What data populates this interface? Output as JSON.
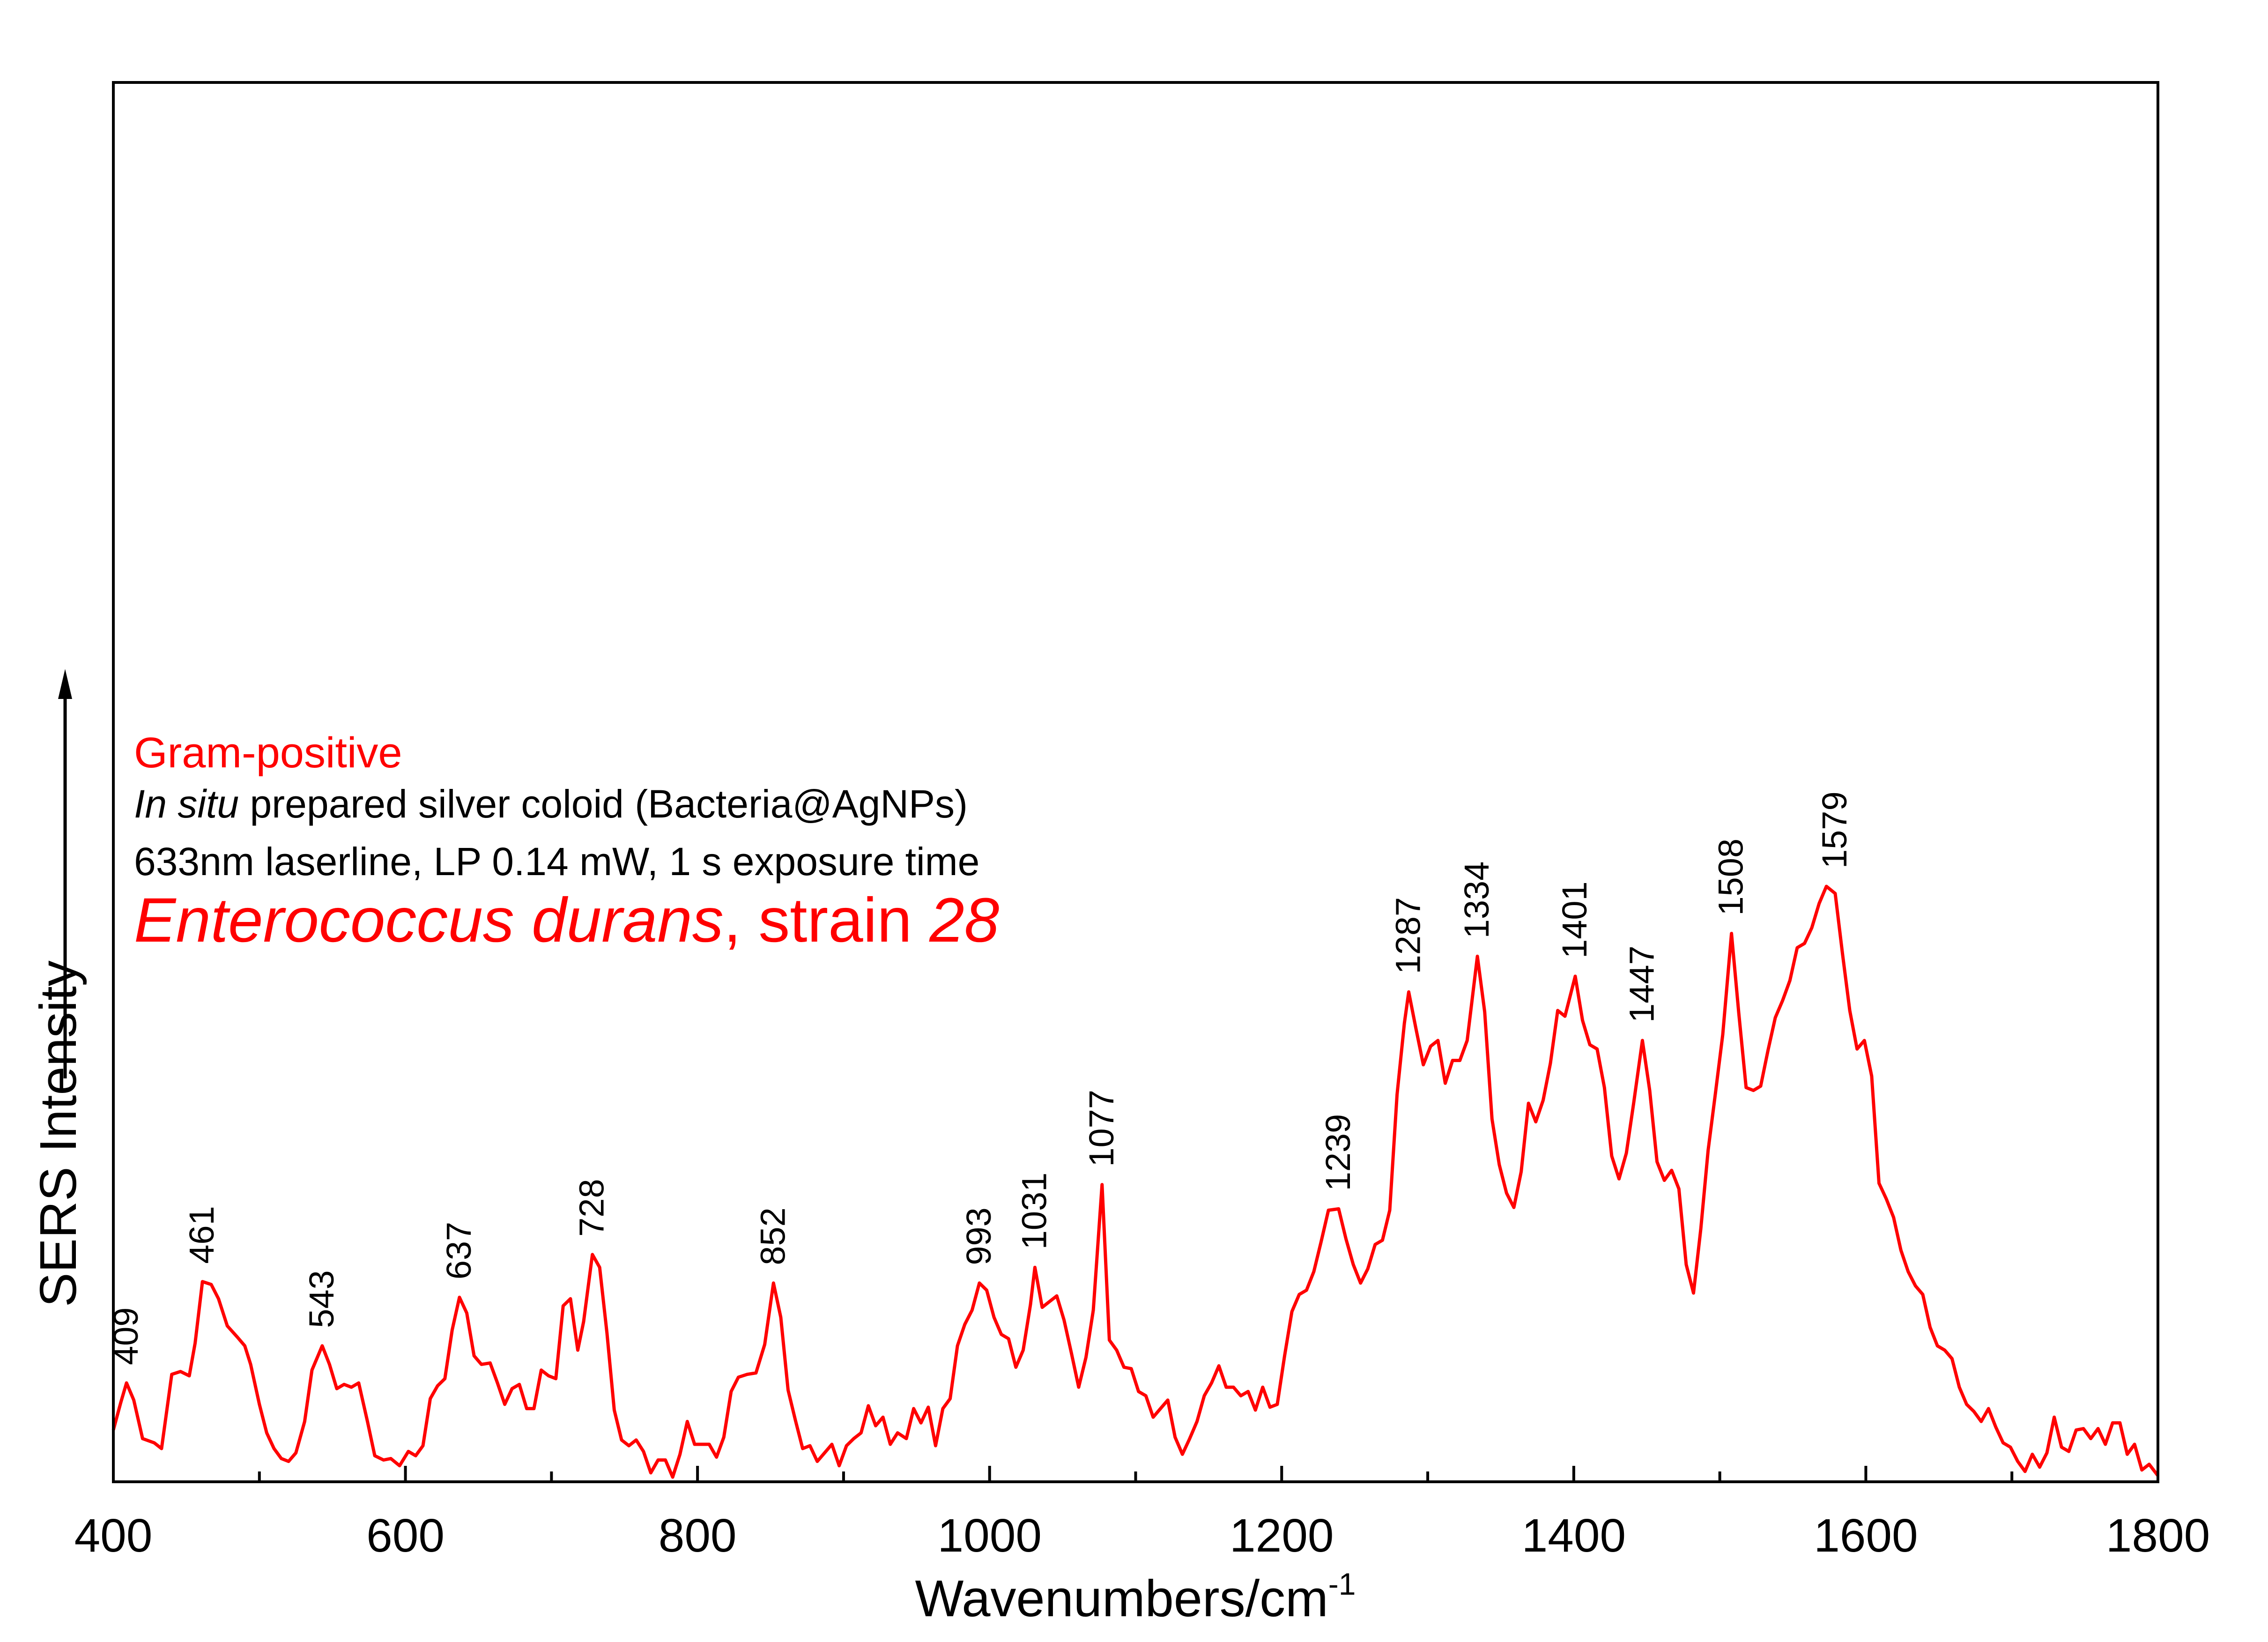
{
  "chart_data": {
    "type": "line",
    "xlabel": "Wavenumbers/cm",
    "xlabel_superscript": "-1",
    "ylabel": "SERS Intensity",
    "xlim": [
      400,
      1800
    ],
    "ylim": [
      0,
      1
    ],
    "x_ticks": [
      400,
      600,
      800,
      1000,
      1200,
      1400,
      1600,
      1800
    ],
    "x_minor_step": 100,
    "y_ticks_shown": false,
    "grid": false,
    "series": [
      {
        "color": "#ff0000",
        "points": [
          [
            400,
            0.034
          ],
          [
            405,
            0.053
          ],
          [
            409,
            0.067
          ],
          [
            414,
            0.055
          ],
          [
            420,
            0.028
          ],
          [
            428,
            0.025
          ],
          [
            433,
            0.021
          ],
          [
            440,
            0.073
          ],
          [
            446,
            0.075
          ],
          [
            452,
            0.072
          ],
          [
            456,
            0.095
          ],
          [
            461,
            0.138
          ],
          [
            467,
            0.136
          ],
          [
            472,
            0.126
          ],
          [
            478,
            0.107
          ],
          [
            485,
            0.099
          ],
          [
            490,
            0.093
          ],
          [
            494,
            0.08
          ],
          [
            500,
            0.052
          ],
          [
            505,
            0.032
          ],
          [
            510,
            0.021
          ],
          [
            515,
            0.014
          ],
          [
            520,
            0.012
          ],
          [
            525,
            0.018
          ],
          [
            531,
            0.04
          ],
          [
            536,
            0.076
          ],
          [
            543,
            0.093
          ],
          [
            548,
            0.08
          ],
          [
            553,
            0.063
          ],
          [
            558,
            0.066
          ],
          [
            563,
            0.064
          ],
          [
            568,
            0.067
          ],
          [
            574,
            0.04
          ],
          [
            579,
            0.016
          ],
          [
            585,
            0.013
          ],
          [
            590,
            0.014
          ],
          [
            596,
            0.009
          ],
          [
            602,
            0.019
          ],
          [
            607,
            0.016
          ],
          [
            612,
            0.023
          ],
          [
            617,
            0.056
          ],
          [
            622,
            0.065
          ],
          [
            627,
            0.07
          ],
          [
            632,
            0.104
          ],
          [
            637,
            0.127
          ],
          [
            642,
            0.116
          ],
          [
            647,
            0.086
          ],
          [
            652,
            0.08
          ],
          [
            658,
            0.081
          ],
          [
            663,
            0.067
          ],
          [
            668,
            0.052
          ],
          [
            673,
            0.063
          ],
          [
            678,
            0.066
          ],
          [
            683,
            0.049
          ],
          [
            688,
            0.049
          ],
          [
            693,
            0.076
          ],
          [
            698,
            0.072
          ],
          [
            703,
            0.07
          ],
          [
            708,
            0.121
          ],
          [
            713,
            0.126
          ],
          [
            718,
            0.09
          ],
          [
            722,
            0.11
          ],
          [
            728,
            0.157
          ],
          [
            733,
            0.148
          ],
          [
            738,
            0.102
          ],
          [
            743,
            0.048
          ],
          [
            748,
            0.027
          ],
          [
            753,
            0.023
          ],
          [
            758,
            0.027
          ],
          [
            763,
            0.019
          ],
          [
            768,
            0.004
          ],
          [
            773,
            0.013
          ],
          [
            778,
            0.013
          ],
          [
            783,
            0.001
          ],
          [
            788,
            0.017
          ],
          [
            793,
            0.04
          ],
          [
            798,
            0.024
          ],
          [
            803,
            0.024
          ],
          [
            808,
            0.024
          ],
          [
            813,
            0.015
          ],
          [
            818,
            0.029
          ],
          [
            823,
            0.061
          ],
          [
            828,
            0.071
          ],
          [
            834,
            0.073
          ],
          [
            840,
            0.074
          ],
          [
            846,
            0.094
          ],
          [
            852,
            0.137
          ],
          [
            857,
            0.113
          ],
          [
            862,
            0.062
          ],
          [
            867,
            0.041
          ],
          [
            872,
            0.021
          ],
          [
            877,
            0.023
          ],
          [
            882,
            0.012
          ],
          [
            887,
            0.018
          ],
          [
            892,
            0.024
          ],
          [
            897,
            0.009
          ],
          [
            902,
            0.023
          ],
          [
            907,
            0.028
          ],
          [
            912,
            0.032
          ],
          [
            917,
            0.051
          ],
          [
            922,
            0.037
          ],
          [
            927,
            0.043
          ],
          [
            932,
            0.024
          ],
          [
            937,
            0.032
          ],
          [
            943,
            0.028
          ],
          [
            948,
            0.049
          ],
          [
            953,
            0.039
          ],
          [
            958,
            0.05
          ],
          [
            963,
            0.023
          ],
          [
            968,
            0.049
          ],
          [
            973,
            0.056
          ],
          [
            978,
            0.093
          ],
          [
            983,
            0.108
          ],
          [
            988,
            0.118
          ],
          [
            993,
            0.137
          ],
          [
            998,
            0.132
          ],
          [
            1003,
            0.113
          ],
          [
            1008,
            0.101
          ],
          [
            1013,
            0.098
          ],
          [
            1018,
            0.078
          ],
          [
            1023,
            0.09
          ],
          [
            1028,
            0.122
          ],
          [
            1031,
            0.148
          ],
          [
            1036,
            0.12
          ],
          [
            1041,
            0.124
          ],
          [
            1046,
            0.128
          ],
          [
            1051,
            0.111
          ],
          [
            1056,
            0.088
          ],
          [
            1061,
            0.064
          ],
          [
            1066,
            0.085
          ],
          [
            1071,
            0.118
          ],
          [
            1077,
            0.206
          ],
          [
            1082,
            0.097
          ],
          [
            1087,
            0.09
          ],
          [
            1092,
            0.078
          ],
          [
            1097,
            0.077
          ],
          [
            1102,
            0.061
          ],
          [
            1107,
            0.058
          ],
          [
            1112,
            0.043
          ],
          [
            1117,
            0.049
          ],
          [
            1122,
            0.055
          ],
          [
            1127,
            0.029
          ],
          [
            1132,
            0.017
          ],
          [
            1137,
            0.028
          ],
          [
            1142,
            0.04
          ],
          [
            1147,
            0.058
          ],
          [
            1152,
            0.067
          ],
          [
            1157,
            0.079
          ],
          [
            1162,
            0.064
          ],
          [
            1167,
            0.064
          ],
          [
            1172,
            0.058
          ],
          [
            1177,
            0.061
          ],
          [
            1182,
            0.048
          ],
          [
            1187,
            0.064
          ],
          [
            1192,
            0.05
          ],
          [
            1197,
            0.052
          ],
          [
            1202,
            0.086
          ],
          [
            1207,
            0.117
          ],
          [
            1212,
            0.129
          ],
          [
            1217,
            0.132
          ],
          [
            1222,
            0.145
          ],
          [
            1227,
            0.166
          ],
          [
            1232,
            0.188
          ],
          [
            1239,
            0.189
          ],
          [
            1244,
            0.168
          ],
          [
            1249,
            0.15
          ],
          [
            1254,
            0.137
          ],
          [
            1259,
            0.147
          ],
          [
            1264,
            0.164
          ],
          [
            1269,
            0.167
          ],
          [
            1274,
            0.188
          ],
          [
            1279,
            0.269
          ],
          [
            1284,
            0.319
          ],
          [
            1287,
            0.341
          ],
          [
            1292,
            0.315
          ],
          [
            1297,
            0.29
          ],
          [
            1302,
            0.303
          ],
          [
            1307,
            0.307
          ],
          [
            1312,
            0.277
          ],
          [
            1317,
            0.293
          ],
          [
            1322,
            0.293
          ],
          [
            1327,
            0.307
          ],
          [
            1334,
            0.366
          ],
          [
            1339,
            0.327
          ],
          [
            1344,
            0.252
          ],
          [
            1349,
            0.22
          ],
          [
            1354,
            0.2
          ],
          [
            1359,
            0.19
          ],
          [
            1364,
            0.215
          ],
          [
            1369,
            0.263
          ],
          [
            1374,
            0.25
          ],
          [
            1379,
            0.265
          ],
          [
            1384,
            0.291
          ],
          [
            1389,
            0.328
          ],
          [
            1394,
            0.324
          ],
          [
            1401,
            0.352
          ],
          [
            1406,
            0.321
          ],
          [
            1411,
            0.304
          ],
          [
            1416,
            0.301
          ],
          [
            1421,
            0.274
          ],
          [
            1426,
            0.226
          ],
          [
            1431,
            0.21
          ],
          [
            1436,
            0.228
          ],
          [
            1441,
            0.263
          ],
          [
            1447,
            0.307
          ],
          [
            1452,
            0.272
          ],
          [
            1457,
            0.222
          ],
          [
            1462,
            0.209
          ],
          [
            1467,
            0.216
          ],
          [
            1472,
            0.203
          ],
          [
            1477,
            0.15
          ],
          [
            1482,
            0.13
          ],
          [
            1487,
            0.175
          ],
          [
            1492,
            0.23
          ],
          [
            1497,
            0.27
          ],
          [
            1502,
            0.311
          ],
          [
            1508,
            0.382
          ],
          [
            1513,
            0.326
          ],
          [
            1518,
            0.274
          ],
          [
            1523,
            0.272
          ],
          [
            1528,
            0.275
          ],
          [
            1533,
            0.3
          ],
          [
            1538,
            0.323
          ],
          [
            1543,
            0.335
          ],
          [
            1548,
            0.349
          ],
          [
            1553,
            0.372
          ],
          [
            1558,
            0.375
          ],
          [
            1563,
            0.386
          ],
          [
            1568,
            0.403
          ],
          [
            1573,
            0.415
          ],
          [
            1579,
            0.41
          ],
          [
            1584,
            0.368
          ],
          [
            1589,
            0.328
          ],
          [
            1594,
            0.301
          ],
          [
            1599,
            0.307
          ],
          [
            1604,
            0.282
          ],
          [
            1609,
            0.207
          ],
          [
            1614,
            0.196
          ],
          [
            1619,
            0.183
          ],
          [
            1624,
            0.16
          ],
          [
            1629,
            0.145
          ],
          [
            1634,
            0.135
          ],
          [
            1639,
            0.129
          ],
          [
            1644,
            0.106
          ],
          [
            1649,
            0.093
          ],
          [
            1654,
            0.09
          ],
          [
            1659,
            0.084
          ],
          [
            1664,
            0.064
          ],
          [
            1669,
            0.052
          ],
          [
            1674,
            0.047
          ],
          [
            1679,
            0.04
          ],
          [
            1684,
            0.049
          ],
          [
            1689,
            0.036
          ],
          [
            1694,
            0.025
          ],
          [
            1699,
            0.022
          ],
          [
            1704,
            0.012
          ],
          [
            1709,
            0.005
          ],
          [
            1714,
            0.017
          ],
          [
            1719,
            0.008
          ],
          [
            1724,
            0.018
          ],
          [
            1729,
            0.043
          ],
          [
            1734,
            0.022
          ],
          [
            1739,
            0.019
          ],
          [
            1744,
            0.034
          ],
          [
            1749,
            0.035
          ],
          [
            1754,
            0.028
          ],
          [
            1759,
            0.035
          ],
          [
            1764,
            0.024
          ],
          [
            1769,
            0.039
          ],
          [
            1774,
            0.039
          ],
          [
            1779,
            0.017
          ],
          [
            1784,
            0.024
          ],
          [
            1789,
            0.006
          ],
          [
            1794,
            0.01
          ],
          [
            1800,
            0.002
          ]
        ]
      }
    ],
    "peak_labels": [
      {
        "label": "409",
        "x": 409,
        "y": 0.067
      },
      {
        "label": "461",
        "x": 461,
        "y": 0.138
      },
      {
        "label": "543",
        "x": 543,
        "y": 0.093
      },
      {
        "label": "637",
        "x": 637,
        "y": 0.127
      },
      {
        "label": "728",
        "x": 728,
        "y": 0.157
      },
      {
        "label": "852",
        "x": 852,
        "y": 0.137
      },
      {
        "label": "993",
        "x": 993,
        "y": 0.137
      },
      {
        "label": "1031",
        "x": 1031,
        "y": 0.148
      },
      {
        "label": "1077",
        "x": 1077,
        "y": 0.206
      },
      {
        "label": "1239",
        "x": 1239,
        "y": 0.189
      },
      {
        "label": "1287",
        "x": 1287,
        "y": 0.341
      },
      {
        "label": "1334",
        "x": 1334,
        "y": 0.366
      },
      {
        "label": "1401",
        "x": 1401,
        "y": 0.352
      },
      {
        "label": "1447",
        "x": 1447,
        "y": 0.307
      },
      {
        "label": "1508",
        "x": 1508,
        "y": 0.382
      },
      {
        "label": "1579",
        "x": 1579,
        "y": 0.415
      }
    ],
    "annotations": {
      "gram": "Gram-positive",
      "colloid_italic": "In situ",
      "colloid_rest": " prepared silver coloid (Bacteria@AgNPs)",
      "laser": "633nm laserline, LP 0.14 mW, 1 s exposure time",
      "species_italic": "Enterococcus durans",
      "strain_prefix": ", strain ",
      "strain_number": "28"
    },
    "colors": {
      "series": "#ff0000",
      "axis": "#000000",
      "annotation_accent": "#ff0000"
    }
  }
}
